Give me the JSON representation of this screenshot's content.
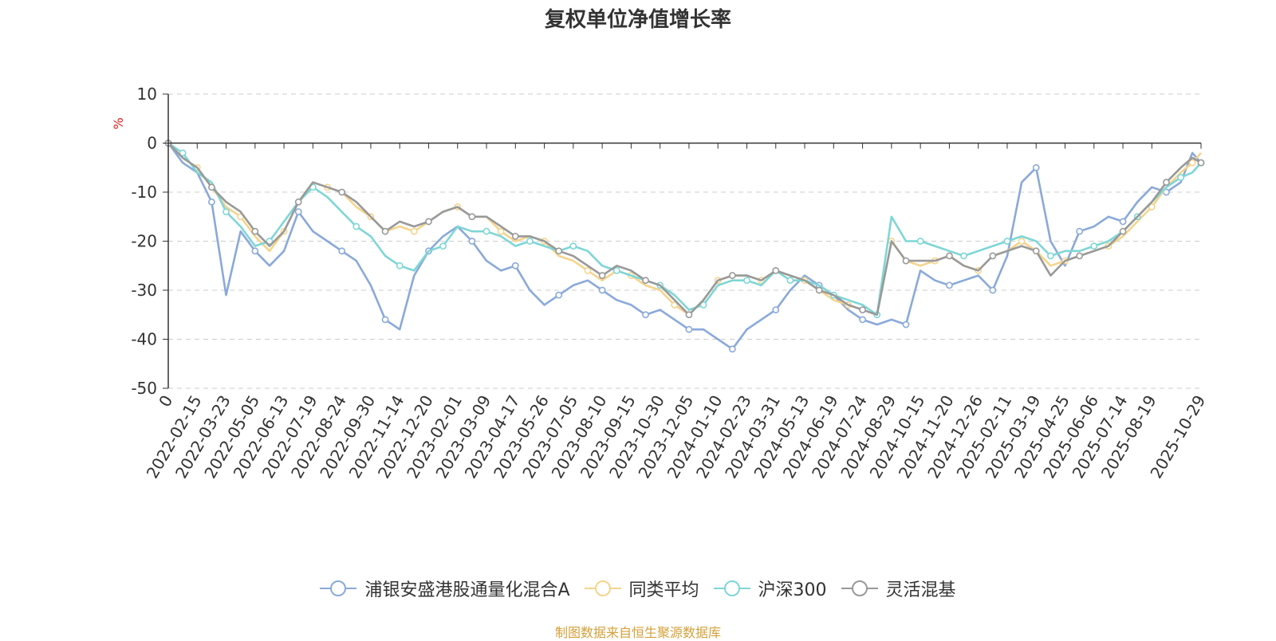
{
  "title": "复权单位净值增长率",
  "source": "制图数据来自恒生聚源数据库",
  "chart_data": {
    "type": "line",
    "title": "复权单位净值增长率",
    "ylabel": "%",
    "ylim": [
      -50,
      10
    ],
    "yticks": [
      10,
      0,
      -10,
      -20,
      -30,
      -40,
      -50
    ],
    "grid": true,
    "legend_position": "bottom",
    "x_tick_labels": [
      "0",
      "2022-02-15",
      "2022-03-23",
      "2022-05-05",
      "2022-06-13",
      "2022-07-19",
      "2022-08-24",
      "2022-09-30",
      "2022-11-14",
      "2022-12-20",
      "2023-02-01",
      "2023-03-09",
      "2023-04-17",
      "2023-05-26",
      "2023-07-05",
      "2023-08-10",
      "2023-09-15",
      "2023-10-30",
      "2023-12-05",
      "2024-01-10",
      "2024-02-23",
      "2024-03-31",
      "2024-05-13",
      "2024-06-19",
      "2024-07-24",
      "2024-08-29",
      "2024-10-15",
      "2024-11-20",
      "2024-12-26",
      "2025-02-11",
      "2025-03-19",
      "2025-04-25",
      "2025-06-06",
      "2025-07-14",
      "2025-08-19",
      "2025-10-29"
    ],
    "x_tick_index": [
      0,
      1,
      2,
      3,
      4,
      5,
      6,
      7,
      8,
      9,
      10,
      11,
      12,
      13,
      14,
      15,
      16,
      17,
      18,
      19,
      20,
      21,
      22,
      23,
      24,
      25,
      26,
      27,
      28,
      29,
      30,
      31,
      32,
      33,
      34,
      35.7
    ],
    "x_range": [
      0,
      35.7
    ],
    "x": [
      0,
      0.5,
      1,
      1.5,
      2,
      2.5,
      3,
      3.5,
      4,
      4.5,
      5,
      5.5,
      6,
      6.5,
      7,
      7.5,
      8,
      8.5,
      9,
      9.5,
      10,
      10.5,
      11,
      11.5,
      12,
      12.5,
      13,
      13.5,
      14,
      14.5,
      15,
      15.5,
      16,
      16.5,
      17,
      17.5,
      18,
      18.5,
      19,
      19.5,
      20,
      20.5,
      21,
      21.5,
      22,
      22.5,
      23,
      23.5,
      24,
      24.5,
      25,
      25.5,
      26,
      26.5,
      27,
      27.5,
      28,
      28.5,
      29,
      29.5,
      30,
      30.5,
      31,
      31.5,
      32,
      32.5,
      33,
      33.5,
      34,
      34.5,
      35,
      35.4,
      35.7
    ],
    "series": [
      {
        "name": "浦银安盛港股通量化混合A",
        "color": "#8aa9d9",
        "values": [
          0,
          -4,
          -6,
          -12,
          -31,
          -18,
          -22,
          -25,
          -22,
          -14,
          -18,
          -20,
          -22,
          -24,
          -29,
          -36,
          -38,
          -27,
          -22,
          -19,
          -17,
          -20,
          -24,
          -26,
          -25,
          -30,
          -33,
          -31,
          -29,
          -28,
          -30,
          -32,
          -33,
          -35,
          -34,
          -36,
          -38,
          -38,
          -40,
          -42,
          -38,
          -36,
          -34,
          -30,
          -27,
          -29,
          -31,
          -34,
          -36,
          -37,
          -36,
          -37,
          -26,
          -28,
          -29,
          -28,
          -27,
          -30,
          -23,
          -8,
          -5,
          -20,
          -25,
          -18,
          -17,
          -15,
          -16,
          -12,
          -9,
          -10,
          -8,
          -2,
          -4
        ]
      },
      {
        "name": "同类平均",
        "color": "#f5d48c",
        "values": [
          0,
          -3,
          -5,
          -9,
          -13,
          -15,
          -19,
          -22,
          -18,
          -12,
          -8,
          -9,
          -10,
          -13,
          -15,
          -18,
          -17,
          -18,
          -16,
          -14,
          -13,
          -15,
          -15,
          -18,
          -20,
          -19,
          -20,
          -23,
          -24,
          -26,
          -28,
          -26,
          -27,
          -29,
          -30,
          -33,
          -35,
          -32,
          -28,
          -27,
          -27,
          -28,
          -26,
          -27,
          -28,
          -30,
          -32,
          -33,
          -34,
          -35,
          -20,
          -24,
          -25,
          -24,
          -23,
          -25,
          -26,
          -23,
          -22,
          -20,
          -22,
          -25,
          -24,
          -23,
          -22,
          -21,
          -19,
          -16,
          -13,
          -9,
          -6,
          -4,
          -2
        ]
      },
      {
        "name": "沪深300",
        "color": "#7fd6d6",
        "values": [
          0,
          -2,
          -6,
          -8,
          -14,
          -17,
          -21,
          -20,
          -16,
          -12,
          -9,
          -11,
          -14,
          -17,
          -19,
          -23,
          -25,
          -26,
          -22,
          -21,
          -17,
          -18,
          -18,
          -19,
          -21,
          -20,
          -21,
          -22,
          -21,
          -22,
          -25,
          -26,
          -27,
          -28,
          -29,
          -31,
          -34,
          -33,
          -29,
          -28,
          -28,
          -29,
          -26,
          -28,
          -28,
          -29,
          -31,
          -32,
          -33,
          -35,
          -15,
          -20,
          -20,
          -21,
          -22,
          -23,
          -22,
          -21,
          -20,
          -19,
          -20,
          -23,
          -22,
          -22,
          -21,
          -20,
          -18,
          -15,
          -12,
          -9,
          -7,
          -6,
          -4
        ]
      },
      {
        "name": "灵活混基",
        "color": "#999999",
        "values": [
          0,
          -3,
          -5,
          -9,
          -12,
          -14,
          -18,
          -21,
          -18,
          -12,
          -8,
          -9,
          -10,
          -12,
          -15,
          -18,
          -16,
          -17,
          -16,
          -14,
          -13,
          -15,
          -15,
          -17,
          -19,
          -19,
          -20,
          -22,
          -23,
          -25,
          -27,
          -25,
          -26,
          -28,
          -29,
          -32,
          -35,
          -32,
          -28,
          -27,
          -27,
          -28,
          -26,
          -27,
          -28,
          -30,
          -31,
          -33,
          -34,
          -35,
          -20,
          -24,
          -24,
          -24,
          -23,
          -25,
          -26,
          -23,
          -22,
          -21,
          -22,
          -27,
          -24,
          -23,
          -22,
          -21,
          -18,
          -15,
          -12,
          -8,
          -5,
          -3,
          -4
        ]
      }
    ]
  }
}
